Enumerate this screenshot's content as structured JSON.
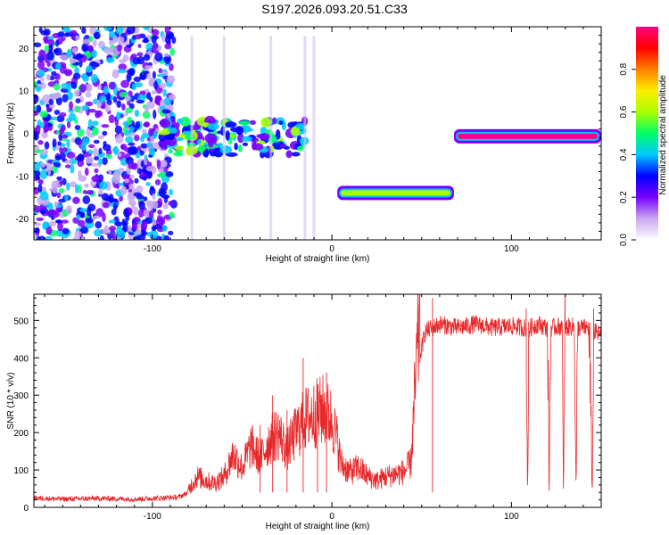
{
  "title": "S197.2026.093.20.51.C33",
  "chart_data": [
    {
      "type": "heatmap",
      "xlabel": "Height of straight line (km)",
      "ylabel": "Frequency (Hz)",
      "xlim": [
        -166,
        150
      ],
      "ylim": [
        -25,
        25
      ],
      "x_ticks": [
        -100,
        0,
        100
      ],
      "y_ticks": [
        -20,
        -10,
        0,
        10,
        20
      ],
      "colorbar": {
        "label": "Normalized spectral amplitude",
        "range": [
          0,
          1
        ],
        "ticks": [
          "0.0",
          "0.2",
          "0.4",
          "0.6",
          "0.8"
        ],
        "colors": [
          "#ffffff",
          "#c9a7f0",
          "#7a00ff",
          "#0000ff",
          "#00c8ff",
          "#00ff66",
          "#aaff00",
          "#ffee00",
          "#ff8000",
          "#ff0000",
          "#ff0080"
        ]
      },
      "features": [
        {
          "name": "noise",
          "x_range": [
            -166,
            -88
          ],
          "y_range": [
            -25,
            25
          ],
          "amplitude": 0.12
        },
        {
          "name": "scatter",
          "x_range": [
            -95,
            -15
          ],
          "y_center": -1,
          "y_spread": 4,
          "amplitude": 0.3
        },
        {
          "name": "tone",
          "x_range": [
            3,
            68
          ],
          "frequency": -14,
          "amplitude": 0.55
        },
        {
          "name": "tone",
          "x_range": [
            68,
            150
          ],
          "frequency": -0.7,
          "amplitude": 0.95
        }
      ]
    },
    {
      "type": "line",
      "xlabel": "Height of straight line (km)",
      "ylabel": "SNR (10 * v/v)",
      "xlim": [
        -166,
        150
      ],
      "ylim": [
        0,
        570
      ],
      "x_ticks": [
        -100,
        0,
        100
      ],
      "y_ticks": [
        0,
        100,
        200,
        300,
        400,
        500
      ],
      "color": "#e8292b",
      "points": [
        [
          -166,
          25
        ],
        [
          -150,
          22
        ],
        [
          -130,
          24
        ],
        [
          -110,
          22
        ],
        [
          -95,
          25
        ],
        [
          -85,
          28
        ],
        [
          -80,
          40
        ],
        [
          -75,
          70
        ],
        [
          -70,
          60
        ],
        [
          -65,
          55
        ],
        [
          -60,
          70
        ],
        [
          -55,
          120
        ],
        [
          -50,
          90
        ],
        [
          -45,
          140
        ],
        [
          -40,
          110
        ],
        [
          -35,
          150
        ],
        [
          -30,
          170
        ],
        [
          -25,
          130
        ],
        [
          -20,
          170
        ],
        [
          -15,
          200
        ],
        [
          -10,
          210
        ],
        [
          -5,
          220
        ],
        [
          0,
          200
        ],
        [
          3,
          150
        ],
        [
          5,
          100
        ],
        [
          10,
          80
        ],
        [
          15,
          90
        ],
        [
          20,
          70
        ],
        [
          25,
          60
        ],
        [
          30,
          70
        ],
        [
          35,
          75
        ],
        [
          40,
          80
        ],
        [
          44,
          100
        ],
        [
          48,
          380
        ],
        [
          52,
          470
        ],
        [
          60,
          490
        ],
        [
          70,
          480
        ],
        [
          80,
          490
        ],
        [
          90,
          480
        ],
        [
          100,
          485
        ],
        [
          108,
          480
        ],
        [
          109,
          30
        ],
        [
          110,
          480
        ],
        [
          115,
          490
        ],
        [
          120,
          480
        ],
        [
          121,
          30
        ],
        [
          122,
          480
        ],
        [
          128,
          485
        ],
        [
          129,
          30
        ],
        [
          130,
          480
        ],
        [
          135,
          485
        ],
        [
          136,
          30
        ],
        [
          137,
          480
        ],
        [
          143,
          480
        ],
        [
          145,
          30
        ],
        [
          146,
          470
        ],
        [
          150,
          460
        ]
      ],
      "spikes": [
        {
          "x": -40,
          "y": 220
        },
        {
          "x": -33,
          "y": 300
        },
        {
          "x": -25,
          "y": 260
        },
        {
          "x": -16,
          "y": 400
        },
        {
          "x": -8,
          "y": 330
        },
        {
          "x": -3,
          "y": 360
        },
        {
          "x": 56,
          "y": 560
        }
      ]
    }
  ]
}
